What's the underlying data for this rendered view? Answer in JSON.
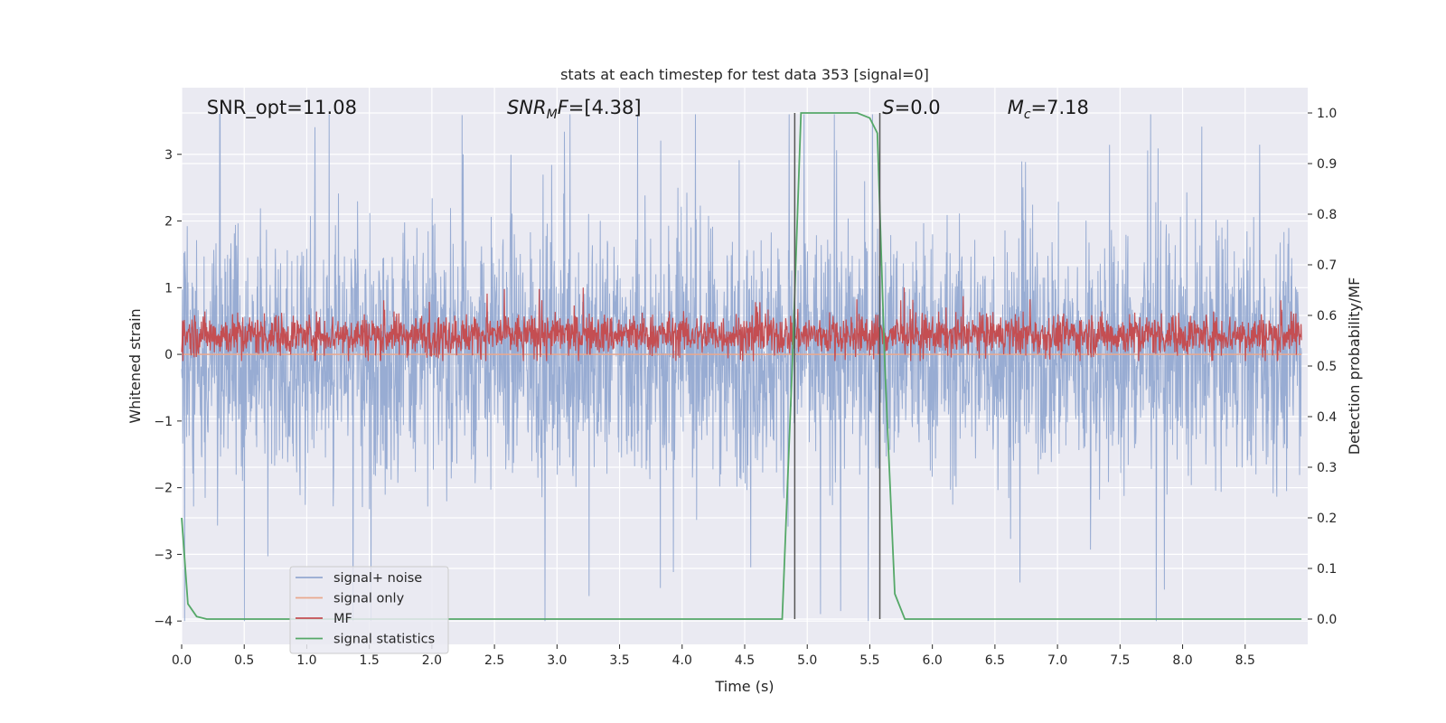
{
  "chart_data": {
    "type": "line",
    "title": "stats at each timestep for test data 353 [signal=0]",
    "xlabel": "Time (s)",
    "ylabel": "Whitened strain",
    "y2label": "Detection probability/MF",
    "xlim": [
      0.0,
      9.0
    ],
    "ylim": [
      -4.35,
      4.0
    ],
    "y2lim": [
      -0.05,
      1.05
    ],
    "xticks": [
      0.0,
      0.5,
      1.0,
      1.5,
      2.0,
      2.5,
      3.0,
      3.5,
      4.0,
      4.5,
      5.0,
      5.5,
      6.0,
      6.5,
      7.0,
      7.5,
      8.0,
      8.5
    ],
    "xtick_labels": [
      "0.0",
      "0.5",
      "1.0",
      "1.5",
      "2.0",
      "2.5",
      "3.0",
      "3.5",
      "4.0",
      "4.5",
      "5.0",
      "5.5",
      "6.0",
      "6.5",
      "7.0",
      "7.5",
      "8.0",
      "8.5"
    ],
    "yticks": [
      3,
      2,
      1,
      0,
      -1,
      -2,
      -3,
      -4
    ],
    "ytick_labels": [
      "3",
      "2",
      "1",
      "0",
      "−1",
      "−2",
      "−3",
      "−4"
    ],
    "y2ticks": [
      1.0,
      0.9,
      0.8,
      0.7,
      0.6,
      0.5,
      0.4,
      0.3,
      0.2,
      0.1,
      0.0
    ],
    "y2tick_labels": [
      "1.0",
      "0.9",
      "0.8",
      "0.7",
      "0.6",
      "0.5",
      "0.4",
      "0.3",
      "0.2",
      "0.1",
      "0.0"
    ],
    "grid": true,
    "legend_position": "lower-left",
    "annotations": [
      {
        "text": "SNR_opt=11.08",
        "x": 0.2,
        "y": 3.7
      },
      {
        "text": "SNR_MF=[4.38]",
        "x": 2.6,
        "y": 3.7
      },
      {
        "text": "S=0.0",
        "x": 5.6,
        "y": 3.7
      },
      {
        "text": "M_c=7.18",
        "x": 6.6,
        "y": 3.7
      }
    ],
    "vlines": [
      {
        "x": 4.9,
        "y2_range": [
          0.0,
          1.0
        ]
      },
      {
        "x": 5.58,
        "y2_range": [
          0.0,
          1.0
        ]
      }
    ],
    "series": [
      {
        "name": "signal+ noise",
        "color": "#94a9d1",
        "axis": "left",
        "kind": "noise",
        "typical_range": [
          -1.8,
          2.0
        ],
        "peak_range": [
          -4.0,
          3.6
        ]
      },
      {
        "name": "signal only",
        "color": "#e9a88e",
        "axis": "left",
        "kind": "flat",
        "values": [
          0.0
        ]
      },
      {
        "name": "MF",
        "color": "#c44e52",
        "axis": "left",
        "kind": "noise",
        "typical_range": [
          0.0,
          0.65
        ],
        "peak_range": [
          -0.1,
          1.0
        ]
      },
      {
        "name": "signal statistics",
        "color": "#55a868",
        "axis": "right",
        "kind": "line",
        "x": [
          0.0,
          0.05,
          0.12,
          0.2,
          0.5,
          1.0,
          2.0,
          3.0,
          4.0,
          4.7,
          4.8,
          4.88,
          4.95,
          5.0,
          5.2,
          5.4,
          5.5,
          5.56,
          5.62,
          5.7,
          5.78,
          5.9,
          6.5,
          7.5,
          8.5,
          8.95
        ],
        "y": [
          0.2,
          0.03,
          0.005,
          0.0,
          0.0,
          0.0,
          0.0,
          0.0,
          0.0,
          0.0,
          0.0,
          0.5,
          1.0,
          1.0,
          1.0,
          1.0,
          0.99,
          0.96,
          0.5,
          0.05,
          0.0,
          0.0,
          0.0,
          0.0,
          0.0,
          0.0
        ]
      }
    ]
  }
}
